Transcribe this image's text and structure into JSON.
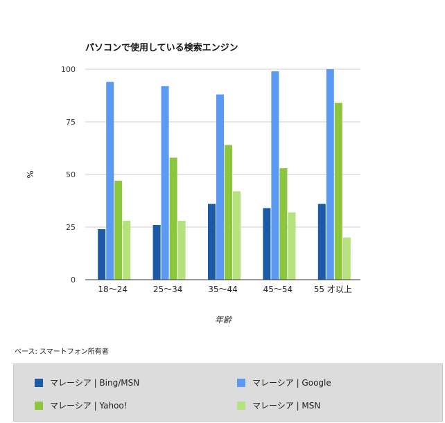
{
  "chart_data": {
    "type": "bar",
    "title": "パソコンで使用している検索エンジン",
    "xlabel": "年齢",
    "ylabel": "%",
    "ylim": [
      0,
      100
    ],
    "yticks": [
      0,
      25,
      50,
      75,
      100
    ],
    "grid": true,
    "categories": [
      "18〜24",
      "25〜34",
      "35〜44",
      "45〜54",
      "55 才以上"
    ],
    "series": [
      {
        "name": "マレーシア | Bing/MSN",
        "color": "#1a5aa6",
        "values": [
          24,
          26,
          36,
          34,
          36
        ]
      },
      {
        "name": "マレーシア | Google",
        "color": "#5b9af3",
        "values": [
          94,
          92,
          88,
          99,
          100
        ]
      },
      {
        "name": "マレーシア | Yahoo!",
        "color": "#8cc63e",
        "values": [
          47,
          58,
          64,
          53,
          84
        ]
      },
      {
        "name": "マレーシア | MSN",
        "color": "#b5e27d",
        "values": [
          28,
          28,
          42,
          32,
          20
        ]
      }
    ]
  },
  "base_note": "ベース: スマートフォン所有者"
}
